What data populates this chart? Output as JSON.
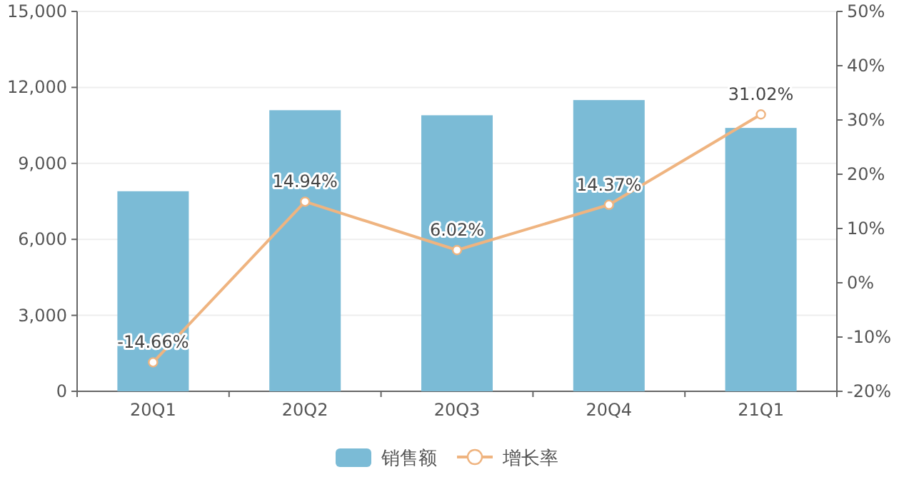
{
  "chart_data": {
    "type": "bar",
    "categories": [
      "20Q1",
      "20Q2",
      "20Q3",
      "20Q4",
      "21Q1"
    ],
    "series": [
      {
        "name": "销售额",
        "color": "#7bbbd6",
        "values": [
          7900,
          11100,
          10900,
          11500,
          10400
        ]
      },
      {
        "name": "增长率",
        "type": "line",
        "axis": "y2",
        "color": "#efb480",
        "marker": "circle",
        "values": [
          -14.66,
          14.94,
          6.02,
          14.37,
          31.02
        ],
        "value_labels": [
          "-14.66%",
          "14.94%",
          "6.02%",
          "14.37%",
          "31.02%"
        ]
      }
    ],
    "ylim": [
      0,
      15000
    ],
    "yticks": [
      {
        "value": 0,
        "label": "0"
      },
      {
        "value": 3000,
        "label": "3,000"
      },
      {
        "value": 6000,
        "label": "6,000"
      },
      {
        "value": 9000,
        "label": "9,000"
      },
      {
        "value": 12000,
        "label": "12,000"
      },
      {
        "value": 15000,
        "label": "15,000"
      }
    ],
    "y2lim": [
      -20,
      50
    ],
    "y2ticks": [
      {
        "value": -20,
        "label": "-20%"
      },
      {
        "value": -10,
        "label": "-10%"
      },
      {
        "value": 0,
        "label": "0%"
      },
      {
        "value": 10,
        "label": "10%"
      },
      {
        "value": 20,
        "label": "20%"
      },
      {
        "value": 30,
        "label": "30%"
      },
      {
        "value": 40,
        "label": "40%"
      },
      {
        "value": 50,
        "label": "50%"
      }
    ],
    "grid": "y",
    "legend": "bottom"
  }
}
